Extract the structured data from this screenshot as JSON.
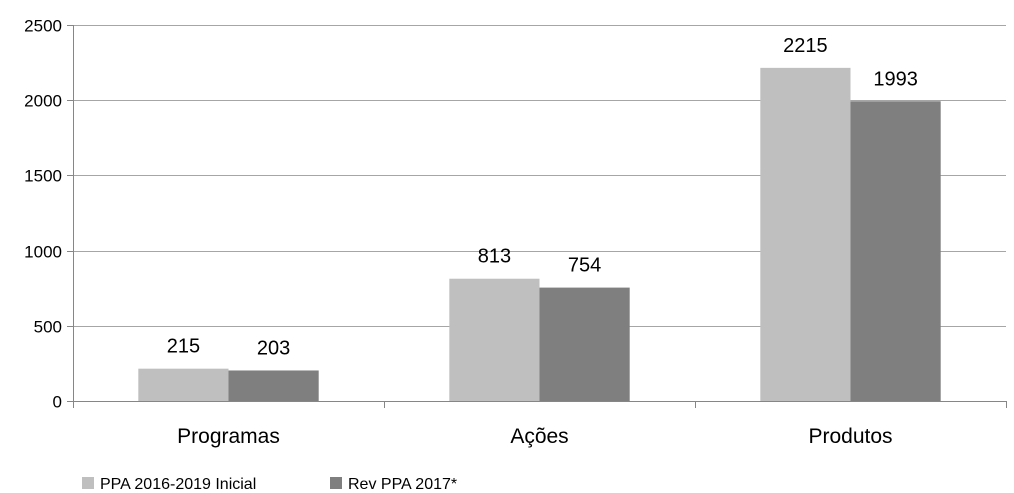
{
  "chart_data": {
    "type": "bar",
    "categories": [
      "Programas",
      "Ações",
      "Produtos"
    ],
    "series": [
      {
        "name": "PPA 2016-2019 Inicial",
        "values": [
          215,
          813,
          2215
        ],
        "color": "#bfbfbf"
      },
      {
        "name": "Rev PPA 2017*",
        "values": [
          203,
          754,
          1993
        ],
        "color": "#7f7f7f"
      }
    ],
    "ylim": [
      0,
      2500
    ],
    "yticks": [
      0,
      500,
      1000,
      1500,
      2000,
      2500
    ],
    "grid": true,
    "legend_position": "bottom-left",
    "title": "",
    "xlabel": "",
    "ylabel": ""
  }
}
